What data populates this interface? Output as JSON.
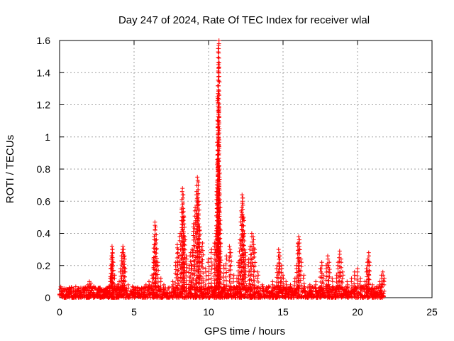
{
  "chart_data": {
    "type": "scatter",
    "title": "Day 247 of 2024, Rate Of TEC Index for receiver wlal",
    "xlabel": "GPS time / hours",
    "ylabel": "ROTI / TECUs",
    "xlim": [
      0,
      25
    ],
    "ylim": [
      0,
      1.6
    ],
    "x_ticks": [
      0,
      5,
      10,
      15,
      20,
      25
    ],
    "x_tick_labels": [
      "0",
      "5",
      "10",
      "15",
      "20",
      "25"
    ],
    "y_ticks": [
      0,
      0.2,
      0.4,
      0.6,
      0.8,
      1,
      1.2,
      1.4,
      1.6
    ],
    "y_tick_labels": [
      "0",
      "0.2",
      "0.4",
      "0.6",
      "0.8",
      "1",
      "1.2",
      "1.4",
      "1.6"
    ],
    "grid": true,
    "marker": "+",
    "color": "#ff0000",
    "data_extent_hours": [
      0,
      21.8
    ],
    "baseline_range": [
      0.0,
      0.07
    ],
    "series": [
      {
        "name": "ROTI",
        "points": [
          [
            0.2,
            0.03
          ],
          [
            0.5,
            0.05
          ],
          [
            0.8,
            0.04
          ],
          [
            1.2,
            0.05
          ],
          [
            1.6,
            0.06
          ],
          [
            1.9,
            0.08
          ],
          [
            2.0,
            0.1
          ],
          [
            2.1,
            0.09
          ],
          [
            2.3,
            0.07
          ],
          [
            2.6,
            0.04
          ],
          [
            3.0,
            0.05
          ],
          [
            3.3,
            0.07
          ],
          [
            3.4,
            0.12
          ],
          [
            3.45,
            0.2
          ],
          [
            3.5,
            0.26
          ],
          [
            3.52,
            0.32
          ],
          [
            3.55,
            0.3
          ],
          [
            3.6,
            0.22
          ],
          [
            3.7,
            0.14
          ],
          [
            3.9,
            0.08
          ],
          [
            4.0,
            0.1
          ],
          [
            4.1,
            0.18
          ],
          [
            4.2,
            0.28
          ],
          [
            4.25,
            0.32
          ],
          [
            4.3,
            0.3
          ],
          [
            4.35,
            0.26
          ],
          [
            4.4,
            0.18
          ],
          [
            4.6,
            0.08
          ],
          [
            5.0,
            0.05
          ],
          [
            5.5,
            0.06
          ],
          [
            5.8,
            0.08
          ],
          [
            6.0,
            0.1
          ],
          [
            6.2,
            0.14
          ],
          [
            6.3,
            0.24
          ],
          [
            6.35,
            0.38
          ],
          [
            6.4,
            0.47
          ],
          [
            6.45,
            0.44
          ],
          [
            6.5,
            0.36
          ],
          [
            6.6,
            0.22
          ],
          [
            6.8,
            0.12
          ],
          [
            7.0,
            0.08
          ],
          [
            7.3,
            0.06
          ],
          [
            7.6,
            0.1
          ],
          [
            7.8,
            0.22
          ],
          [
            7.9,
            0.33
          ],
          [
            7.95,
            0.3
          ],
          [
            8.1,
            0.4
          ],
          [
            8.2,
            0.55
          ],
          [
            8.25,
            0.68
          ],
          [
            8.3,
            0.64
          ],
          [
            8.35,
            0.5
          ],
          [
            8.4,
            0.38
          ],
          [
            8.5,
            0.26
          ],
          [
            8.7,
            0.2
          ],
          [
            8.8,
            0.28
          ],
          [
            8.9,
            0.3
          ],
          [
            9.0,
            0.46
          ],
          [
            9.1,
            0.56
          ],
          [
            9.2,
            0.66
          ],
          [
            9.25,
            0.75
          ],
          [
            9.3,
            0.72
          ],
          [
            9.35,
            0.6
          ],
          [
            9.4,
            0.44
          ],
          [
            9.5,
            0.3
          ],
          [
            9.6,
            0.34
          ],
          [
            9.8,
            0.18
          ],
          [
            10.0,
            0.24
          ],
          [
            10.2,
            0.3
          ],
          [
            10.4,
            0.34
          ],
          [
            10.5,
            0.4
          ],
          [
            10.55,
            0.66
          ],
          [
            10.6,
            0.86
          ],
          [
            10.62,
            1.08
          ],
          [
            10.64,
            1.27
          ],
          [
            10.66,
            1.45
          ],
          [
            10.68,
            1.57
          ],
          [
            10.7,
            1.6
          ],
          [
            10.72,
            0.82
          ],
          [
            10.75,
            0.61
          ],
          [
            10.8,
            0.42
          ],
          [
            11.0,
            0.2
          ],
          [
            11.2,
            0.26
          ],
          [
            11.4,
            0.32
          ],
          [
            11.5,
            0.28
          ],
          [
            11.7,
            0.14
          ],
          [
            11.9,
            0.12
          ],
          [
            12.0,
            0.22
          ],
          [
            12.1,
            0.36
          ],
          [
            12.2,
            0.54
          ],
          [
            12.25,
            0.64
          ],
          [
            12.3,
            0.62
          ],
          [
            12.35,
            0.5
          ],
          [
            12.4,
            0.4
          ],
          [
            12.5,
            0.28
          ],
          [
            12.7,
            0.24
          ],
          [
            12.8,
            0.32
          ],
          [
            12.9,
            0.4
          ],
          [
            13.0,
            0.38
          ],
          [
            13.1,
            0.3
          ],
          [
            13.3,
            0.16
          ],
          [
            13.6,
            0.08
          ],
          [
            14.0,
            0.06
          ],
          [
            14.3,
            0.1
          ],
          [
            14.6,
            0.2
          ],
          [
            14.7,
            0.3
          ],
          [
            14.8,
            0.26
          ],
          [
            14.9,
            0.2
          ],
          [
            15.0,
            0.14
          ],
          [
            15.2,
            0.1
          ],
          [
            15.5,
            0.08
          ],
          [
            15.8,
            0.12
          ],
          [
            15.9,
            0.2
          ],
          [
            16.0,
            0.34
          ],
          [
            16.05,
            0.38
          ],
          [
            16.1,
            0.36
          ],
          [
            16.2,
            0.24
          ],
          [
            16.4,
            0.14
          ],
          [
            16.8,
            0.08
          ],
          [
            17.2,
            0.1
          ],
          [
            17.5,
            0.18
          ],
          [
            17.6,
            0.22
          ],
          [
            17.7,
            0.14
          ],
          [
            17.9,
            0.2
          ],
          [
            18.0,
            0.26
          ],
          [
            18.1,
            0.22
          ],
          [
            18.3,
            0.12
          ],
          [
            18.6,
            0.14
          ],
          [
            18.7,
            0.22
          ],
          [
            18.8,
            0.29
          ],
          [
            18.9,
            0.24
          ],
          [
            19.0,
            0.16
          ],
          [
            19.3,
            0.1
          ],
          [
            19.6,
            0.12
          ],
          [
            19.8,
            0.16
          ],
          [
            20.0,
            0.18
          ],
          [
            20.2,
            0.12
          ],
          [
            20.5,
            0.1
          ],
          [
            20.6,
            0.18
          ],
          [
            20.7,
            0.24
          ],
          [
            20.75,
            0.28
          ],
          [
            20.8,
            0.22
          ],
          [
            21.0,
            0.08
          ],
          [
            21.3,
            0.06
          ],
          [
            21.5,
            0.1
          ],
          [
            21.6,
            0.14
          ],
          [
            21.7,
            0.16
          ],
          [
            21.8,
            0.12
          ]
        ]
      }
    ]
  }
}
